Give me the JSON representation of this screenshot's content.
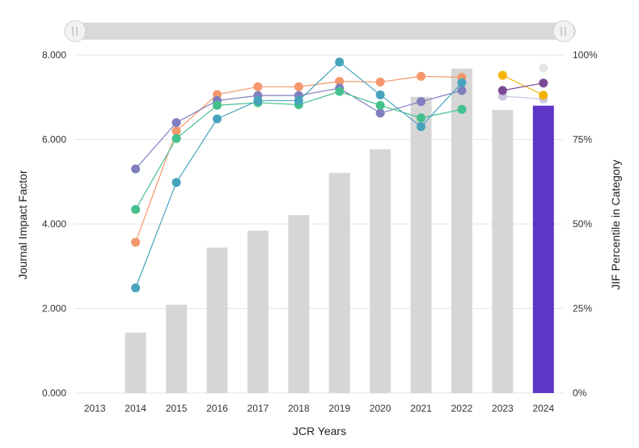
{
  "chart_data": {
    "type": "bar",
    "categories": [
      "2013",
      "2014",
      "2015",
      "2016",
      "2017",
      "2018",
      "2019",
      "2020",
      "2021",
      "2022",
      "2023",
      "2024"
    ],
    "xlabel": "JCR Years",
    "ylabel": "Journal Impact Factor",
    "y2label": "JIF Percentile in Category",
    "ylim": [
      0,
      8
    ],
    "y2lim": [
      0,
      100
    ],
    "yticks": [
      "0.000",
      "2.000",
      "4.000",
      "6.000",
      "8.000"
    ],
    "y2ticks": [
      "0%",
      "25%",
      "50%",
      "75%",
      "100%"
    ],
    "grid": true,
    "bars": {
      "values": [
        null,
        1.43,
        2.09,
        3.44,
        3.84,
        4.21,
        5.21,
        5.77,
        7.01,
        7.68,
        6.7,
        6.8
      ],
      "color": "#d6d6d6",
      "highlight_index": 11,
      "highlight_color": "#5f35c6"
    },
    "series": [
      {
        "color": "#f4976c",
        "values": [
          null,
          44.6,
          77.5,
          88.3,
          90.6,
          90.6,
          92.2,
          92.0,
          93.7,
          93.4,
          null,
          null
        ]
      },
      {
        "color": "#7f7fbf",
        "values": [
          null,
          66.3,
          80.0,
          86.5,
          88.0,
          88.0,
          90.2,
          82.8,
          86.2,
          89.5,
          null,
          null
        ]
      },
      {
        "color": "#44c08c",
        "values": [
          null,
          54.3,
          75.3,
          85.1,
          85.9,
          85.3,
          89.2,
          85.1,
          81.4,
          83.9,
          null,
          null
        ]
      },
      {
        "color": "#48a3bd",
        "values": [
          null,
          31.1,
          62.3,
          81.1,
          86.5,
          86.5,
          97.9,
          88.2,
          78.8,
          91.8,
          null,
          null
        ]
      },
      {
        "color": "#c7c7de",
        "values": [
          null,
          null,
          null,
          null,
          null,
          null,
          null,
          null,
          null,
          null,
          87.8,
          87.0
        ]
      },
      {
        "color": "#e6e6e6",
        "values": [
          null,
          null,
          null,
          null,
          null,
          null,
          null,
          null,
          null,
          null,
          null,
          96.2
        ]
      },
      {
        "color": "#f3b300",
        "values": [
          null,
          null,
          null,
          null,
          null,
          null,
          null,
          null,
          null,
          null,
          94.0,
          88.1
        ]
      },
      {
        "color": "#7b4a95",
        "values": [
          null,
          null,
          null,
          null,
          null,
          null,
          null,
          null,
          null,
          null,
          89.5,
          91.7
        ]
      }
    ]
  }
}
